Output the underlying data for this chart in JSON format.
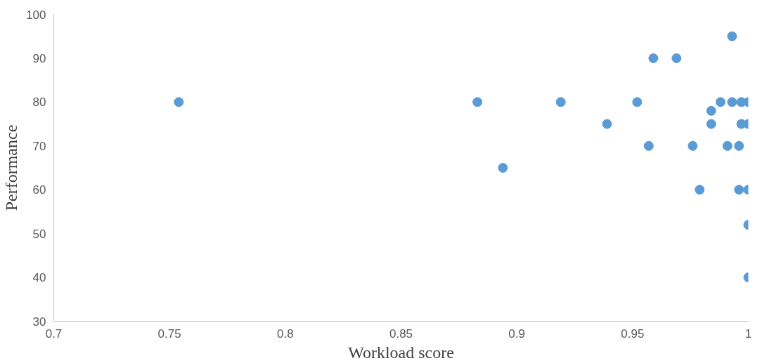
{
  "chart_data": {
    "type": "scatter",
    "xlabel": "Workload score",
    "ylabel": "Performance",
    "xlim": [
      0.7,
      1
    ],
    "xticks": [
      0.7,
      0.75,
      0.8,
      0.85,
      0.9,
      0.95,
      1
    ],
    "ylim": [
      30,
      100
    ],
    "yticks": [
      30,
      40,
      50,
      60,
      70,
      80,
      90,
      100
    ],
    "grid": false,
    "marker": "circle",
    "series": [
      {
        "color": "#5b9bd5",
        "x": [
          0.754,
          0.883,
          0.919,
          0.952,
          0.939,
          0.957,
          0.976,
          0.894,
          0.979,
          0.993,
          0.959,
          0.969,
          0.988,
          0.993,
          0.997,
          1.0,
          0.984,
          0.984,
          0.997,
          1.0,
          0.991,
          0.996,
          0.996,
          1.0,
          1.0,
          1.0
        ],
        "values": [
          80,
          80,
          80,
          80,
          75,
          70,
          70,
          65,
          60,
          95,
          90,
          90,
          80,
          80,
          80,
          80,
          78,
          75,
          75,
          75,
          70,
          70,
          60,
          60,
          52,
          40
        ]
      }
    ]
  }
}
